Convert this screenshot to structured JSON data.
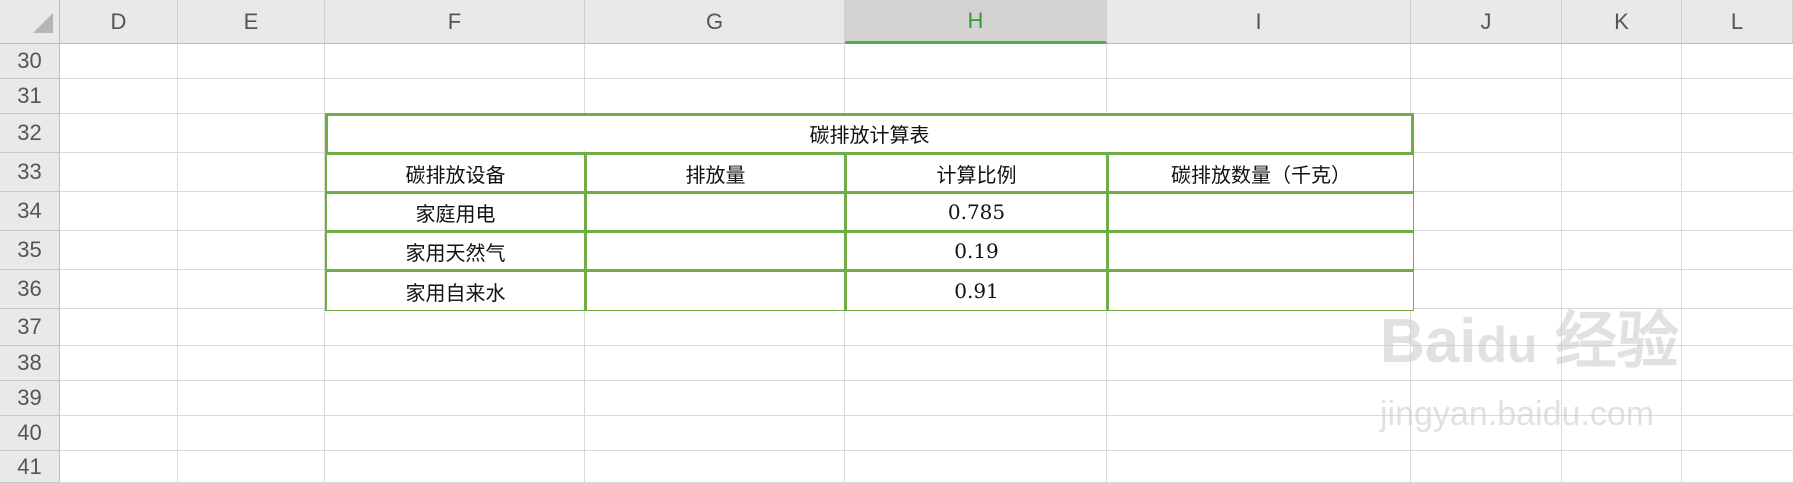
{
  "columns": [
    "D",
    "E",
    "F",
    "G",
    "H",
    "I",
    "J",
    "K",
    "L"
  ],
  "selected_column": "H",
  "rows": [
    "30",
    "31",
    "32",
    "33",
    "34",
    "35",
    "36",
    "37",
    "38",
    "39",
    "40",
    "41"
  ],
  "table": {
    "title": "碳排放计算表",
    "headers": [
      "碳排放设备",
      "排放量",
      "计算比例",
      "碳排放数量（千克）"
    ],
    "body": [
      [
        "家庭用电",
        "",
        "0.785",
        ""
      ],
      [
        "家用天然气",
        "",
        "0.19",
        ""
      ],
      [
        "家用自来水",
        "",
        "0.91",
        ""
      ]
    ]
  },
  "watermark": {
    "brand": "Bai du 经验",
    "url": "jingyan.baidu.com"
  },
  "colors": {
    "border_green": "#70ad47",
    "selected_header": "#4caf50"
  }
}
